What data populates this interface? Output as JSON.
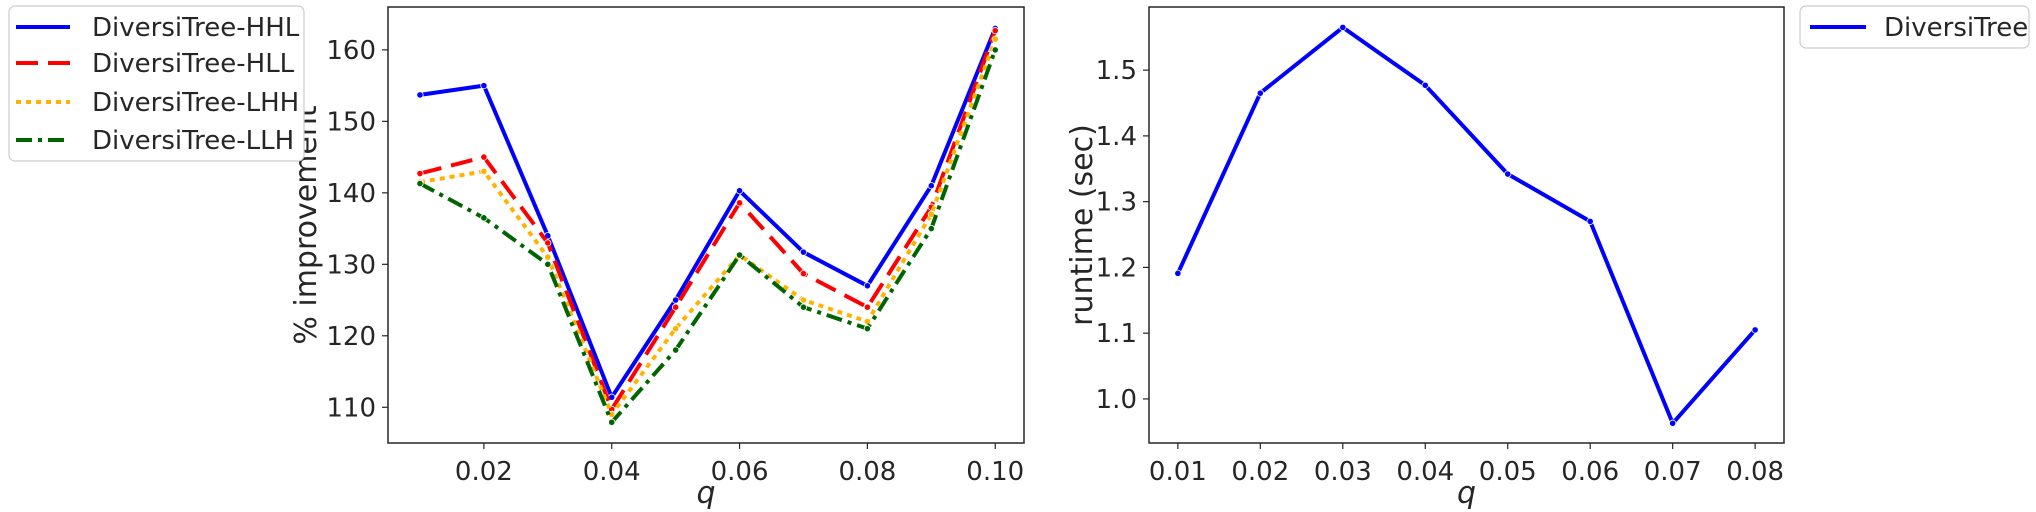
{
  "chart_data": [
    {
      "type": "line",
      "xlabel": "q",
      "ylabel": "% improvement",
      "x": [
        0.01,
        0.02,
        0.03,
        0.04,
        0.05,
        0.06,
        0.07,
        0.08,
        0.09,
        0.1
      ],
      "xlim": [
        0.005,
        0.1045
      ],
      "ylim": [
        105,
        166
      ],
      "xticks": [
        0.02,
        0.04,
        0.06,
        0.08,
        0.1
      ],
      "xtick_labels": [
        "0.02",
        "0.04",
        "0.06",
        "0.08",
        "0.10"
      ],
      "yticks": [
        110,
        120,
        130,
        140,
        150,
        160
      ],
      "ytick_labels": [
        "110",
        "120",
        "130",
        "140",
        "150",
        "160"
      ],
      "grid": false,
      "legend_position": "outside-left",
      "series": [
        {
          "name": "DiversiTree-HHL",
          "color": "#0000ff",
          "dash": "solid",
          "values": [
            153.7,
            155.0,
            134.0,
            111.4,
            125.0,
            140.3,
            131.7,
            127.0,
            141.0,
            163.0
          ]
        },
        {
          "name": "DiversiTree-HLL",
          "color": "#ff0000",
          "dash": "dashed",
          "values": [
            142.7,
            145.0,
            133.0,
            109.7,
            124.0,
            138.6,
            128.7,
            124.0,
            138.0,
            162.7
          ]
        },
        {
          "name": "DiversiTree-LHH",
          "color": "#ffb300",
          "dash": "dotted",
          "values": [
            141.5,
            143.0,
            131.0,
            109.0,
            121.0,
            131.3,
            125.0,
            122.0,
            137.0,
            161.5
          ]
        },
        {
          "name": "DiversiTree-LLH",
          "color": "#006400",
          "dash": "dashdot",
          "values": [
            141.3,
            136.5,
            130.0,
            107.9,
            118.0,
            131.3,
            124.0,
            121.0,
            135.0,
            160.0
          ]
        }
      ]
    },
    {
      "type": "line",
      "xlabel": "q",
      "ylabel": "runtime (sec)",
      "x": [
        0.01,
        0.02,
        0.03,
        0.04,
        0.05,
        0.06,
        0.07,
        0.08
      ],
      "xlim": [
        0.0065,
        0.0835
      ],
      "ylim": [
        0.933,
        1.596
      ],
      "xticks": [
        0.01,
        0.02,
        0.03,
        0.04,
        0.05,
        0.06,
        0.07,
        0.08
      ],
      "xtick_labels": [
        "0.01",
        "0.02",
        "0.03",
        "0.04",
        "0.05",
        "0.06",
        "0.07",
        "0.08"
      ],
      "yticks": [
        1.0,
        1.1,
        1.2,
        1.3,
        1.4,
        1.5
      ],
      "ytick_labels": [
        "1.0",
        "1.1",
        "1.2",
        "1.3",
        "1.4",
        "1.5"
      ],
      "grid": false,
      "legend_position": "outside-right",
      "series": [
        {
          "name": "DiversiTree",
          "color": "#0000ff",
          "dash": "solid",
          "values": [
            1.191,
            1.465,
            1.565,
            1.477,
            1.342,
            1.27,
            0.963,
            1.105
          ]
        }
      ]
    }
  ]
}
